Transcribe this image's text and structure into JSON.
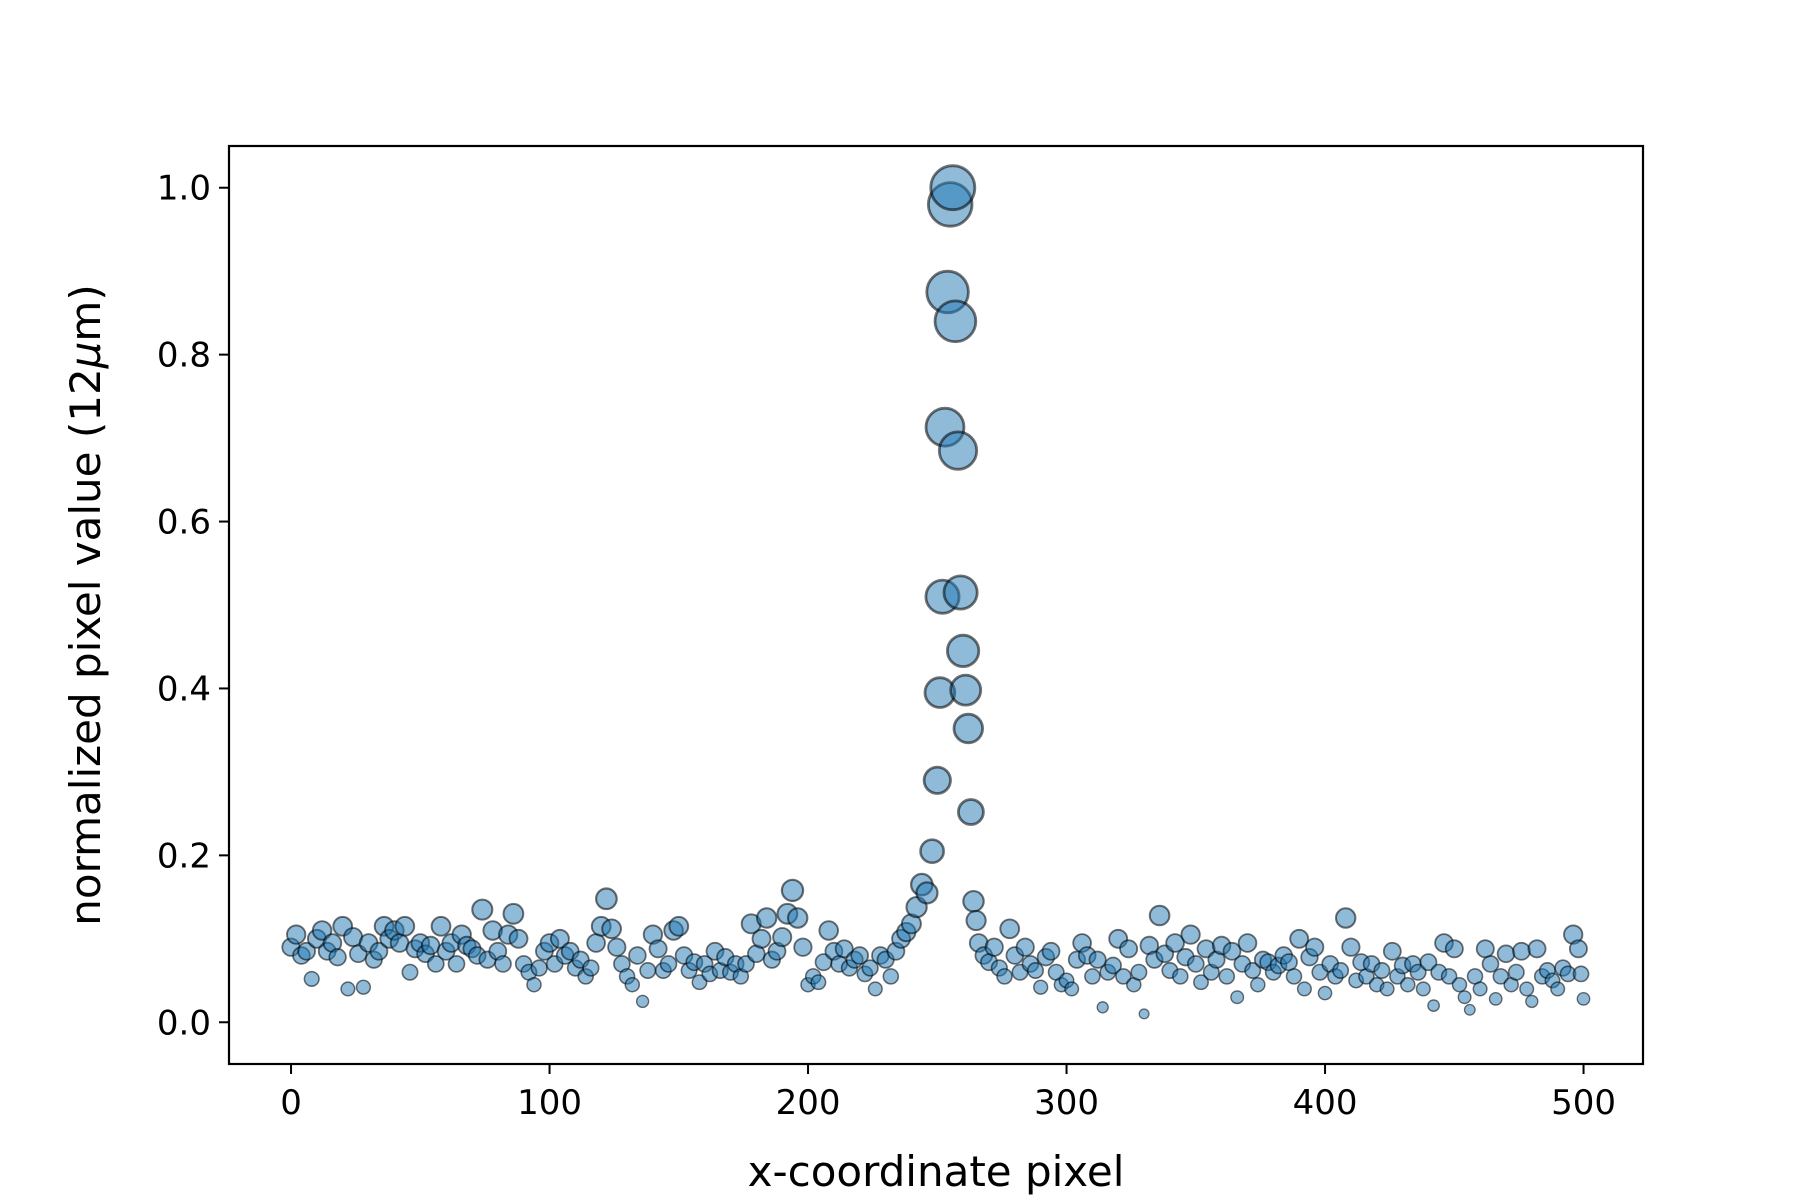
{
  "chart_data": {
    "type": "scatter",
    "xlabel": "x-coordinate pixel",
    "ylabel_prefix": "normalized pixel value (12",
    "ylabel_mu": "μ",
    "ylabel_suffix": "m)",
    "xlim": [
      -24,
      523
    ],
    "ylim": [
      -0.05,
      1.05
    ],
    "x_ticks": [
      0,
      100,
      200,
      300,
      400,
      500
    ],
    "x_tick_labels": [
      "0",
      "100",
      "200",
      "300",
      "400",
      "500"
    ],
    "y_ticks": [
      0.0,
      0.2,
      0.4,
      0.6,
      0.8,
      1.0
    ],
    "y_tick_labels": [
      "0.0",
      "0.2",
      "0.4",
      "0.6",
      "0.8",
      "1.0"
    ],
    "grid": false,
    "legend": "none",
    "marker_color": "#1f77b4",
    "marker_edge": "#000000",
    "size_encodes": "y",
    "points": [
      [
        0,
        0.09
      ],
      [
        2,
        0.105
      ],
      [
        4,
        0.08
      ],
      [
        6,
        0.085
      ],
      [
        8,
        0.052
      ],
      [
        10,
        0.1
      ],
      [
        12,
        0.11
      ],
      [
        14,
        0.085
      ],
      [
        16,
        0.095
      ],
      [
        18,
        0.078
      ],
      [
        20,
        0.115
      ],
      [
        22,
        0.04
      ],
      [
        24,
        0.102
      ],
      [
        26,
        0.082
      ],
      [
        28,
        0.042
      ],
      [
        30,
        0.095
      ],
      [
        32,
        0.075
      ],
      [
        34,
        0.085
      ],
      [
        36,
        0.115
      ],
      [
        38,
        0.1
      ],
      [
        40,
        0.11
      ],
      [
        42,
        0.095
      ],
      [
        44,
        0.115
      ],
      [
        46,
        0.06
      ],
      [
        48,
        0.088
      ],
      [
        50,
        0.095
      ],
      [
        52,
        0.082
      ],
      [
        54,
        0.092
      ],
      [
        56,
        0.07
      ],
      [
        58,
        0.115
      ],
      [
        60,
        0.085
      ],
      [
        62,
        0.095
      ],
      [
        64,
        0.07
      ],
      [
        66,
        0.105
      ],
      [
        68,
        0.092
      ],
      [
        70,
        0.088
      ],
      [
        72,
        0.08
      ],
      [
        74,
        0.135
      ],
      [
        76,
        0.075
      ],
      [
        78,
        0.11
      ],
      [
        80,
        0.085
      ],
      [
        82,
        0.07
      ],
      [
        84,
        0.105
      ],
      [
        86,
        0.13
      ],
      [
        88,
        0.1
      ],
      [
        90,
        0.07
      ],
      [
        92,
        0.06
      ],
      [
        94,
        0.045
      ],
      [
        96,
        0.065
      ],
      [
        98,
        0.085
      ],
      [
        100,
        0.095
      ],
      [
        102,
        0.07
      ],
      [
        104,
        0.1
      ],
      [
        106,
        0.08
      ],
      [
        108,
        0.085
      ],
      [
        110,
        0.065
      ],
      [
        112,
        0.075
      ],
      [
        114,
        0.055
      ],
      [
        116,
        0.065
      ],
      [
        118,
        0.095
      ],
      [
        120,
        0.115
      ],
      [
        122,
        0.148
      ],
      [
        124,
        0.112
      ],
      [
        126,
        0.09
      ],
      [
        128,
        0.07
      ],
      [
        130,
        0.055
      ],
      [
        132,
        0.045
      ],
      [
        134,
        0.08
      ],
      [
        136,
        0.025
      ],
      [
        138,
        0.062
      ],
      [
        140,
        0.105
      ],
      [
        142,
        0.088
      ],
      [
        144,
        0.062
      ],
      [
        146,
        0.07
      ],
      [
        148,
        0.11
      ],
      [
        150,
        0.115
      ],
      [
        152,
        0.08
      ],
      [
        154,
        0.062
      ],
      [
        156,
        0.072
      ],
      [
        158,
        0.048
      ],
      [
        160,
        0.07
      ],
      [
        162,
        0.058
      ],
      [
        164,
        0.085
      ],
      [
        166,
        0.062
      ],
      [
        168,
        0.078
      ],
      [
        170,
        0.06
      ],
      [
        172,
        0.07
      ],
      [
        174,
        0.055
      ],
      [
        176,
        0.07
      ],
      [
        178,
        0.118
      ],
      [
        180,
        0.082
      ],
      [
        182,
        0.1
      ],
      [
        184,
        0.125
      ],
      [
        186,
        0.075
      ],
      [
        188,
        0.085
      ],
      [
        190,
        0.102
      ],
      [
        192,
        0.13
      ],
      [
        194,
        0.158
      ],
      [
        196,
        0.125
      ],
      [
        198,
        0.09
      ],
      [
        200,
        0.045
      ],
      [
        202,
        0.055
      ],
      [
        204,
        0.048
      ],
      [
        206,
        0.072
      ],
      [
        208,
        0.11
      ],
      [
        210,
        0.085
      ],
      [
        212,
        0.07
      ],
      [
        214,
        0.088
      ],
      [
        216,
        0.065
      ],
      [
        218,
        0.075
      ],
      [
        220,
        0.08
      ],
      [
        222,
        0.058
      ],
      [
        224,
        0.065
      ],
      [
        226,
        0.04
      ],
      [
        228,
        0.08
      ],
      [
        230,
        0.075
      ],
      [
        232,
        0.055
      ],
      [
        234,
        0.085
      ],
      [
        236,
        0.1
      ],
      [
        238,
        0.108
      ],
      [
        240,
        0.118
      ],
      [
        242,
        0.138
      ],
      [
        244,
        0.165
      ],
      [
        246,
        0.155
      ],
      [
        248,
        0.205
      ],
      [
        250,
        0.29
      ],
      [
        251,
        0.395
      ],
      [
        252,
        0.51
      ],
      [
        253,
        0.713
      ],
      [
        254,
        0.875
      ],
      [
        255,
        0.98
      ],
      [
        256,
        1.0
      ],
      [
        257,
        0.84
      ],
      [
        258,
        0.685
      ],
      [
        259,
        0.515
      ],
      [
        260,
        0.445
      ],
      [
        261,
        0.398
      ],
      [
        262,
        0.352
      ],
      [
        263,
        0.252
      ],
      [
        264,
        0.145
      ],
      [
        265,
        0.122
      ],
      [
        266,
        0.095
      ],
      [
        268,
        0.08
      ],
      [
        270,
        0.072
      ],
      [
        272,
        0.09
      ],
      [
        274,
        0.065
      ],
      [
        276,
        0.055
      ],
      [
        278,
        0.112
      ],
      [
        280,
        0.08
      ],
      [
        282,
        0.06
      ],
      [
        284,
        0.09
      ],
      [
        286,
        0.07
      ],
      [
        288,
        0.062
      ],
      [
        290,
        0.042
      ],
      [
        292,
        0.078
      ],
      [
        294,
        0.085
      ],
      [
        296,
        0.06
      ],
      [
        298,
        0.045
      ],
      [
        300,
        0.05
      ],
      [
        302,
        0.04
      ],
      [
        304,
        0.075
      ],
      [
        306,
        0.095
      ],
      [
        308,
        0.08
      ],
      [
        310,
        0.055
      ],
      [
        312,
        0.075
      ],
      [
        314,
        0.018
      ],
      [
        316,
        0.06
      ],
      [
        318,
        0.068
      ],
      [
        320,
        0.1
      ],
      [
        322,
        0.055
      ],
      [
        324,
        0.088
      ],
      [
        326,
        0.045
      ],
      [
        328,
        0.06
      ],
      [
        330,
        0.01
      ],
      [
        332,
        0.092
      ],
      [
        334,
        0.075
      ],
      [
        336,
        0.128
      ],
      [
        338,
        0.082
      ],
      [
        340,
        0.062
      ],
      [
        342,
        0.095
      ],
      [
        344,
        0.055
      ],
      [
        346,
        0.078
      ],
      [
        348,
        0.105
      ],
      [
        350,
        0.07
      ],
      [
        352,
        0.048
      ],
      [
        354,
        0.088
      ],
      [
        356,
        0.06
      ],
      [
        358,
        0.075
      ],
      [
        360,
        0.092
      ],
      [
        362,
        0.055
      ],
      [
        364,
        0.085
      ],
      [
        366,
        0.03
      ],
      [
        368,
        0.07
      ],
      [
        370,
        0.095
      ],
      [
        372,
        0.062
      ],
      [
        374,
        0.045
      ],
      [
        376,
        0.075
      ],
      [
        378,
        0.072
      ],
      [
        380,
        0.06
      ],
      [
        382,
        0.068
      ],
      [
        384,
        0.08
      ],
      [
        386,
        0.072
      ],
      [
        388,
        0.055
      ],
      [
        390,
        0.1
      ],
      [
        392,
        0.04
      ],
      [
        394,
        0.078
      ],
      [
        396,
        0.09
      ],
      [
        398,
        0.06
      ],
      [
        400,
        0.035
      ],
      [
        402,
        0.07
      ],
      [
        404,
        0.055
      ],
      [
        406,
        0.062
      ],
      [
        408,
        0.125
      ],
      [
        410,
        0.09
      ],
      [
        412,
        0.05
      ],
      [
        414,
        0.072
      ],
      [
        416,
        0.055
      ],
      [
        418,
        0.07
      ],
      [
        420,
        0.045
      ],
      [
        422,
        0.062
      ],
      [
        424,
        0.04
      ],
      [
        426,
        0.085
      ],
      [
        428,
        0.055
      ],
      [
        430,
        0.068
      ],
      [
        432,
        0.045
      ],
      [
        434,
        0.07
      ],
      [
        436,
        0.06
      ],
      [
        438,
        0.04
      ],
      [
        440,
        0.072
      ],
      [
        442,
        0.02
      ],
      [
        444,
        0.06
      ],
      [
        446,
        0.095
      ],
      [
        448,
        0.055
      ],
      [
        450,
        0.088
      ],
      [
        452,
        0.045
      ],
      [
        454,
        0.03
      ],
      [
        456,
        0.015
      ],
      [
        458,
        0.055
      ],
      [
        460,
        0.04
      ],
      [
        462,
        0.088
      ],
      [
        464,
        0.07
      ],
      [
        466,
        0.028
      ],
      [
        468,
        0.055
      ],
      [
        470,
        0.082
      ],
      [
        472,
        0.045
      ],
      [
        474,
        0.06
      ],
      [
        476,
        0.085
      ],
      [
        478,
        0.04
      ],
      [
        480,
        0.025
      ],
      [
        482,
        0.088
      ],
      [
        484,
        0.055
      ],
      [
        486,
        0.062
      ],
      [
        488,
        0.05
      ],
      [
        490,
        0.04
      ],
      [
        492,
        0.065
      ],
      [
        494,
        0.058
      ],
      [
        496,
        0.105
      ],
      [
        498,
        0.088
      ],
      [
        499,
        0.058
      ],
      [
        500,
        0.028
      ]
    ]
  }
}
